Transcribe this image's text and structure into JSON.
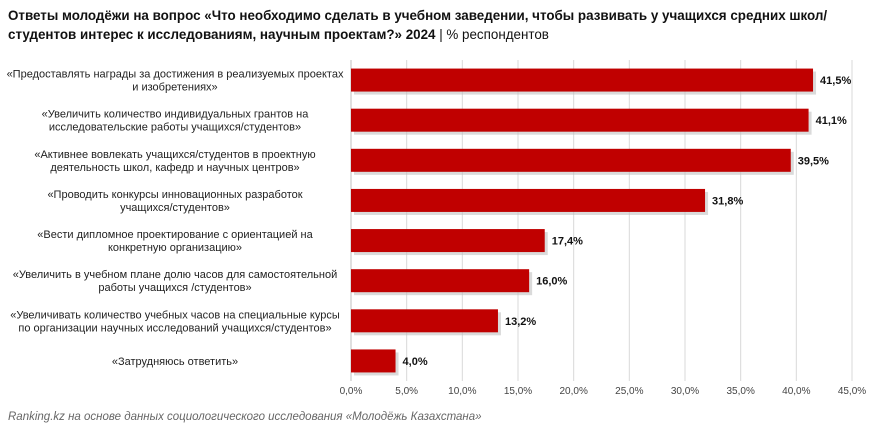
{
  "header": {
    "title_bold": "Ответы молодёжи на вопрос «Что необходимо сделать в учебном заведении, чтобы развивать у учащихся средних школ/студентов интерес к исследованиям, научным проектам?» 2024",
    "title_sep": " | ",
    "title_unit": "% респондентов"
  },
  "footer": {
    "source": "Ranking.kz на основе данных социологического исследования «Молодёжь Казахстана»"
  },
  "colors": {
    "bar": "#c00000",
    "grid": "#d9d9d9",
    "axis": "#bfbfbf"
  },
  "chart_data": {
    "type": "bar",
    "orientation": "horizontal",
    "categories": [
      [
        "«Предоставлять награды за достижения в реализуемых проектах",
        "и изобретениях»"
      ],
      [
        "«Увеличить количество индивидуальных грантов на",
        "исследовательские работы учащихся/студентов»"
      ],
      [
        "«Активнее вовлекать учащихся/студентов в проектную",
        "деятельность школ, кафедр и научных центров»"
      ],
      [
        "«Проводить конкурсы инновационных разработок",
        "учащихся/студентов»"
      ],
      [
        "«Вести дипломное проектирование с ориентацией на",
        "конкретную организацию»"
      ],
      [
        "«Увеличить в учебном плане долю часов для самостоятельной",
        "работы учащихся /студентов»"
      ],
      [
        "«Увеличивать количество учебных часов на специальные курсы",
        "по организации научных исследований учащихся/студентов»"
      ],
      [
        "«Затрудняюсь ответить»"
      ]
    ],
    "values": [
      41.5,
      41.1,
      39.5,
      31.8,
      17.4,
      16.0,
      13.2,
      4.0
    ],
    "value_labels": [
      "41,5%",
      "41,1%",
      "39,5%",
      "31,8%",
      "17,4%",
      "16,0%",
      "13,2%",
      "4,0%"
    ],
    "xlim": [
      0,
      45
    ],
    "ticks": [
      0,
      5,
      10,
      15,
      20,
      25,
      30,
      35,
      40,
      45
    ],
    "tick_labels": [
      "0,0%",
      "5,0%",
      "10,0%",
      "15,0%",
      "20,0%",
      "25,0%",
      "30,0%",
      "35,0%",
      "40,0%",
      "45,0%"
    ],
    "grid": true,
    "legend": "none"
  }
}
